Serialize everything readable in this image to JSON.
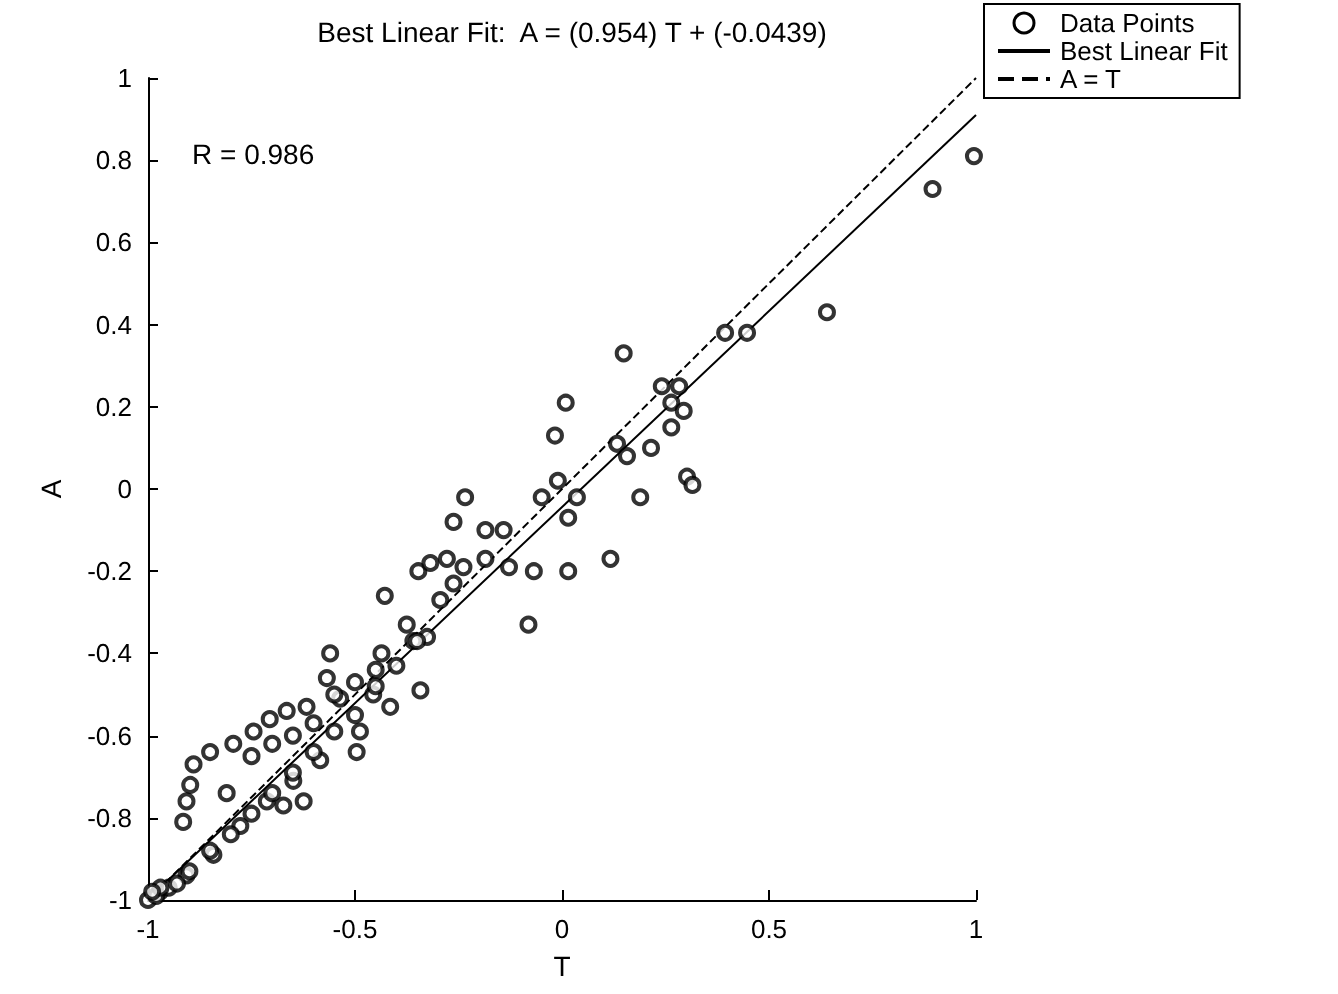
{
  "chart_data": {
    "type": "scatter",
    "title": "Best Linear Fit:  A = (0.954) T + (-0.0439)",
    "xlabel": "T",
    "ylabel": "A",
    "annotations": [
      "R = 0.986"
    ],
    "xlim": [
      -1,
      1
    ],
    "ylim": [
      -1,
      1
    ],
    "xticks": [
      -1,
      -0.5,
      0,
      0.5,
      1
    ],
    "yticks": [
      -1,
      -0.8,
      -0.6,
      -0.4,
      -0.2,
      0,
      0.2,
      0.4,
      0.6,
      0.8,
      1
    ],
    "grid": false,
    "legend": "top right",
    "series": [
      {
        "name": "Data Points",
        "marker": "circle",
        "color": "#000000",
        "x": [
          0.995,
          0.895,
          0.64,
          0.447,
          0.394,
          0.149,
          0.009,
          -0.017,
          0.241,
          0.283,
          0.264,
          0.294,
          0.264,
          0.215,
          0.133,
          0.157,
          0.302,
          0.315,
          -0.01,
          -0.234,
          -0.049,
          0.036,
          0.189,
          0.015,
          -0.262,
          -0.185,
          -0.141,
          -0.185,
          -0.128,
          -0.068,
          0.015,
          0.117,
          -0.081,
          -0.347,
          -0.318,
          -0.278,
          -0.238,
          -0.428,
          -0.294,
          -0.262,
          -0.375,
          -0.326,
          -0.359,
          -0.56,
          -0.436,
          -0.342,
          -0.415,
          -0.496,
          -0.568,
          -0.536,
          -0.617,
          -0.665,
          -0.706,
          -0.745,
          -0.794,
          -0.85,
          -0.89,
          -0.898,
          -0.81,
          -0.907,
          -0.915,
          -0.624,
          -0.673,
          -0.456,
          -0.488,
          -0.584,
          -0.649,
          -0.713,
          -0.777,
          -0.842,
          -0.907,
          -0.971,
          -1,
          -0.95,
          -0.9,
          -0.85,
          -0.8,
          -0.75,
          -0.7,
          -0.65,
          -0.6,
          -0.55,
          -0.5,
          -0.45,
          -0.4,
          -0.35,
          -0.75,
          -0.7,
          -0.65,
          -0.6,
          -0.55,
          -0.5,
          -0.45,
          -0.98,
          -0.97,
          -0.99,
          -0.93
        ],
        "values": [
          0.81,
          0.73,
          0.43,
          0.38,
          0.38,
          0.33,
          0.21,
          0.13,
          0.25,
          0.25,
          0.21,
          0.19,
          0.15,
          0.1,
          0.11,
          0.08,
          0.03,
          0.01,
          0.02,
          -0.02,
          -0.02,
          -0.02,
          -0.02,
          -0.07,
          -0.08,
          -0.1,
          -0.1,
          -0.17,
          -0.19,
          -0.2,
          -0.2,
          -0.17,
          -0.33,
          -0.2,
          -0.18,
          -0.17,
          -0.19,
          -0.26,
          -0.27,
          -0.23,
          -0.33,
          -0.36,
          -0.37,
          -0.4,
          -0.4,
          -0.49,
          -0.53,
          -0.64,
          -0.46,
          -0.51,
          -0.53,
          -0.54,
          -0.56,
          -0.59,
          -0.62,
          -0.64,
          -0.67,
          -0.72,
          -0.74,
          -0.76,
          -0.81,
          -0.76,
          -0.77,
          -0.5,
          -0.59,
          -0.66,
          -0.71,
          -0.76,
          -0.82,
          -0.89,
          -0.94,
          -0.98,
          -1,
          -0.97,
          -0.93,
          -0.88,
          -0.84,
          -0.79,
          -0.74,
          -0.69,
          -0.64,
          -0.59,
          -0.55,
          -0.48,
          -0.43,
          -0.37,
          -0.65,
          -0.62,
          -0.6,
          -0.57,
          -0.5,
          -0.47,
          -0.44,
          -0.99,
          -0.97,
          -0.98,
          -0.96
        ]
      },
      {
        "name": "Best Linear Fit",
        "type": "line",
        "marker": "none",
        "line_style": "solid",
        "color": "#000000",
        "x": [
          -1,
          1
        ],
        "values": [
          -0.998,
          0.91
        ]
      },
      {
        "name": "A = T",
        "type": "line",
        "marker": "none",
        "line_style": "dashed",
        "color": "#000000",
        "x": [
          -1,
          1
        ],
        "values": [
          -1,
          1
        ]
      }
    ]
  }
}
